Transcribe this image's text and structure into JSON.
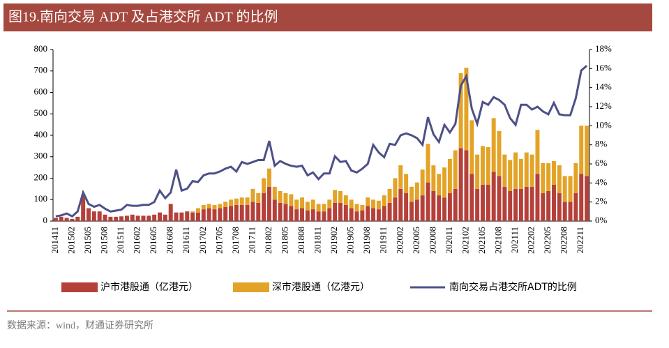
{
  "chart_data": {
    "type": "bar",
    "title": "图19.南向交易 ADT 及占港交所 ADT 的比例",
    "source": "数据来源：wind，财通证券研究所",
    "stacked": true,
    "categories": [
      "201411",
      null,
      null,
      "201502",
      null,
      null,
      "201505",
      null,
      null,
      "201508",
      null,
      null,
      "201511",
      null,
      null,
      "201602",
      null,
      null,
      "201605",
      null,
      null,
      "201608",
      null,
      null,
      "201611",
      null,
      null,
      "201702",
      null,
      null,
      "201705",
      null,
      null,
      "201708",
      null,
      null,
      "201711",
      null,
      null,
      "201802",
      null,
      null,
      "201805",
      null,
      null,
      "201808",
      null,
      null,
      "201811",
      null,
      null,
      "201902",
      null,
      null,
      "201905",
      null,
      null,
      "201908",
      null,
      null,
      "201911",
      null,
      null,
      "202002",
      null,
      null,
      "202005",
      null,
      null,
      "202008",
      null,
      null,
      "202011",
      null,
      null,
      "202102",
      null,
      null,
      "202105",
      null,
      null,
      "202108",
      null,
      null,
      "202111",
      null,
      null,
      "202202",
      null,
      null,
      "202205",
      null,
      null,
      "202208",
      null,
      null,
      "202211",
      null
    ],
    "series": [
      {
        "name": "沪市港股通（亿港元）",
        "color": "#b5403a",
        "values": [
          15,
          20,
          15,
          10,
          20,
          120,
          60,
          45,
          45,
          30,
          20,
          20,
          22,
          25,
          30,
          25,
          25,
          25,
          30,
          40,
          30,
          80,
          40,
          40,
          45,
          40,
          40,
          55,
          60,
          55,
          60,
          65,
          70,
          75,
          75,
          75,
          90,
          85,
          130,
          160,
          100,
          85,
          80,
          70,
          55,
          60,
          50,
          55,
          45,
          45,
          60,
          85,
          85,
          75,
          60,
          45,
          50,
          70,
          60,
          55,
          70,
          85,
          110,
          150,
          130,
          90,
          100,
          120,
          180,
          140,
          120,
          110,
          130,
          150,
          340,
          330,
          220,
          150,
          170,
          170,
          230,
          210,
          160,
          140,
          150,
          150,
          160,
          160,
          220,
          130,
          140,
          170,
          130,
          90,
          90,
          130,
          220,
          210
        ]
      },
      {
        "name": "深市港股通（亿港元）",
        "color": "#e3a327",
        "values": [
          0,
          0,
          0,
          0,
          0,
          0,
          0,
          0,
          0,
          0,
          0,
          0,
          0,
          0,
          0,
          0,
          0,
          0,
          0,
          0,
          0,
          0,
          0,
          0,
          0,
          5,
          20,
          20,
          20,
          20,
          20,
          25,
          30,
          30,
          35,
          35,
          60,
          45,
          70,
          85,
          60,
          55,
          50,
          55,
          45,
          50,
          40,
          45,
          35,
          35,
          40,
          60,
          55,
          45,
          40,
          35,
          25,
          40,
          40,
          40,
          50,
          65,
          90,
          110,
          90,
          70,
          80,
          120,
          180,
          120,
          100,
          140,
          160,
          180,
          350,
          385,
          250,
          160,
          180,
          175,
          250,
          210,
          150,
          145,
          170,
          140,
          160,
          150,
          205,
          140,
          130,
          110,
          130,
          120,
          120,
          140,
          225,
          235
        ]
      },
      {
        "name": "南向交易占港交所ADT的比例",
        "color": "#4d5088",
        "axis": "y2",
        "type": "line",
        "values": [
          0.5,
          0.6,
          0.8,
          0.5,
          1.0,
          3.0,
          1.8,
          1.5,
          1.7,
          1.3,
          1.0,
          1.1,
          1.2,
          1.7,
          1.6,
          1.6,
          1.7,
          1.7,
          2.0,
          3.2,
          2.4,
          3.0,
          5.4,
          3.2,
          3.4,
          4.2,
          4.1,
          4.8,
          5.0,
          5.0,
          5.2,
          5.5,
          5.7,
          5.2,
          6.2,
          6.0,
          6.2,
          6.4,
          6.4,
          8.4,
          5.8,
          6.3,
          6.0,
          5.8,
          5.7,
          5.8,
          4.8,
          5.1,
          4.4,
          5.0,
          5.0,
          6.8,
          6.2,
          6.3,
          5.3,
          5.1,
          5.5,
          6.0,
          8.0,
          7.2,
          6.7,
          8.1,
          8.0,
          9.0,
          9.2,
          9.0,
          8.7,
          8.0,
          10.9,
          9.1,
          8.3,
          10.1,
          9.3,
          10.2,
          14.2,
          15.2,
          11.8,
          10.2,
          12.5,
          12.2,
          13.0,
          12.7,
          12.2,
          10.8,
          10.1,
          12.2,
          12.2,
          11.7,
          12.0,
          11.5,
          11.2,
          12.4,
          11.2,
          11.1,
          11.1,
          12.9,
          15.8,
          16.3
        ]
      }
    ],
    "ylim": [
      0,
      800
    ],
    "yticks": [
      0,
      100,
      200,
      300,
      400,
      500,
      600,
      700,
      800
    ],
    "y2lim": [
      0,
      18
    ],
    "y2ticks": [
      {
        "value": 0,
        "label": "0%"
      },
      {
        "value": 2,
        "label": "2%"
      },
      {
        "value": 4,
        "label": "4%"
      },
      {
        "value": 6,
        "label": "6%"
      },
      {
        "value": 8,
        "label": "8%"
      },
      {
        "value": 10,
        "label": "10%"
      },
      {
        "value": 12,
        "label": "12%"
      },
      {
        "value": 14,
        "label": "14%"
      },
      {
        "value": 16,
        "label": "16%"
      },
      {
        "value": 18,
        "label": "18%"
      }
    ],
    "legend": "bottom"
  }
}
